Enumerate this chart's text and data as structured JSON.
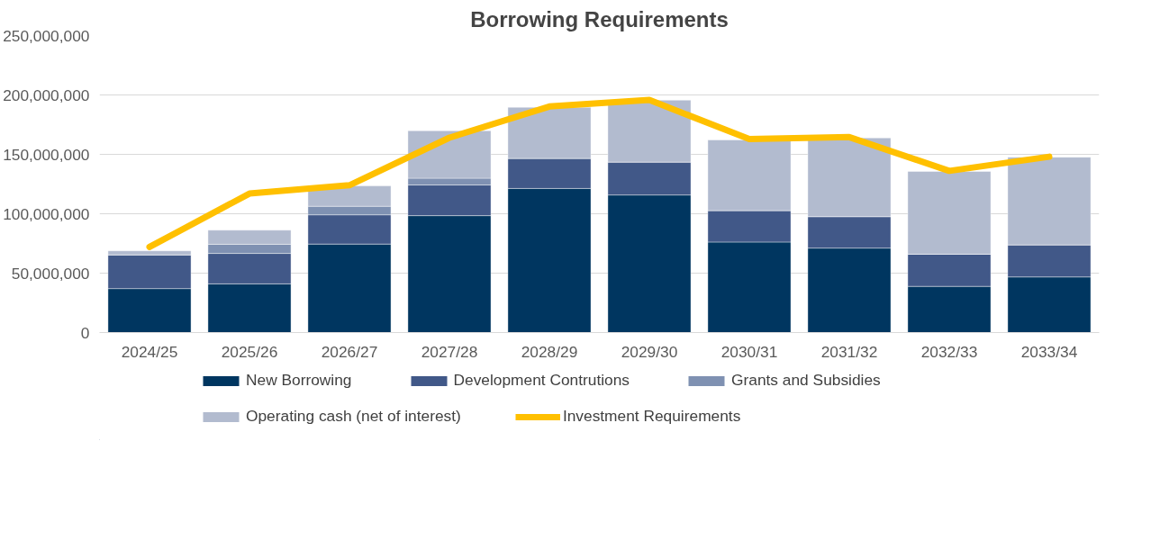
{
  "chart_data": {
    "type": "bar",
    "stacked": true,
    "title": "Borrowing Requirements",
    "categories": [
      "2024/25",
      "2025/26",
      "2026/27",
      "2027/28",
      "2028/29",
      "2029/30",
      "2030/31",
      "2031/32",
      "2032/33",
      "2033/34"
    ],
    "series": [
      {
        "name": "New Borrowing",
        "color": "#003660",
        "values": [
          37000000,
          41000000,
          74500000,
          98400000,
          121300000,
          115800000,
          76200000,
          71100000,
          38900000,
          46800000
        ]
      },
      {
        "name": "Development Contrutions",
        "color": "#415888",
        "values": [
          28400000,
          25600000,
          24600000,
          25800000,
          25300000,
          27700000,
          26500000,
          26500000,
          27000000,
          27000000
        ]
      },
      {
        "name": "Grants and Subsidies",
        "color": "#7f91b2",
        "values": [
          0,
          7700000,
          7200000,
          5700000,
          0,
          0,
          0,
          0,
          0,
          0
        ]
      },
      {
        "name": "Operating cash (net of interest)",
        "color": "#b2bbcf",
        "values": [
          3400000,
          11900000,
          17100000,
          39900000,
          43000000,
          52100000,
          59400000,
          66200000,
          69700000,
          73800000
        ]
      },
      {
        "name": "Investment Requirements",
        "type": "line",
        "color": "#ffc000",
        "values": [
          72000000,
          117000000,
          124000000,
          164000000,
          190300000,
          195800000,
          162800000,
          164500000,
          136100000,
          148000000
        ]
      }
    ],
    "ylim": [
      0,
      250000000
    ],
    "yticks": [
      {
        "value": 0,
        "label": "0"
      },
      {
        "value": 50000000,
        "label": "50,000,000"
      },
      {
        "value": 100000000,
        "label": "100,000,000"
      },
      {
        "value": 150000000,
        "label": "150,000,000"
      },
      {
        "value": 200000000,
        "label": "200,000,000"
      },
      {
        "value": 250000000,
        "label": "250,000,000"
      }
    ],
    "grid": "y",
    "legend": "bottom"
  }
}
